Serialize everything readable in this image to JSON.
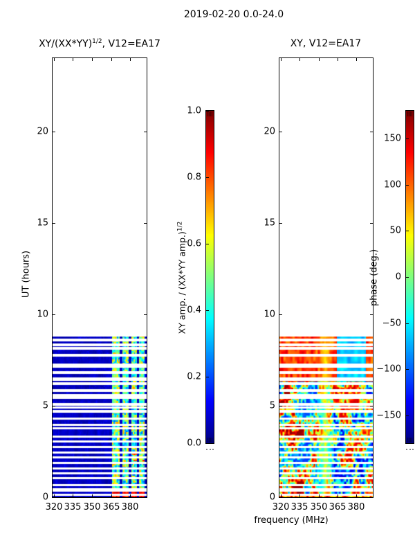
{
  "figure": {
    "title": "2019-02-20 0.0-24.0",
    "background": "#ffffff",
    "text_color": "#000000"
  },
  "panels": [
    {
      "id": "left",
      "title_pre": "XY/(XX*YY)",
      "title_sup": "1/2",
      "title_post": ", V12=EA17",
      "ylabel": "UT (hours)",
      "x_tick_labels": [
        "320",
        "335",
        "350",
        "365",
        "380"
      ],
      "x_tick_values": [
        320,
        335,
        350,
        365,
        380
      ],
      "y_tick_labels": [
        "0",
        "5",
        "10",
        "15",
        "20"
      ],
      "y_tick_values": [
        0,
        5,
        10,
        15,
        20
      ],
      "x_range": [
        319,
        393
      ],
      "y_range": [
        0,
        24
      ]
    },
    {
      "id": "right",
      "title": "XY, V12=EA17",
      "xlabel": "frequency (MHz)",
      "x_tick_labels": [
        "320",
        "335",
        "350",
        "365",
        "380"
      ],
      "x_tick_values": [
        320,
        335,
        350,
        365,
        380
      ],
      "y_tick_labels": [
        "0",
        "5",
        "10",
        "15",
        "20"
      ],
      "y_tick_values": [
        0,
        5,
        10,
        15,
        20
      ],
      "x_range": [
        319,
        393
      ],
      "y_range": [
        0,
        24
      ]
    }
  ],
  "colorbars": [
    {
      "id": "amp",
      "label_pre": "XY amp. / (XX*YY amp.)",
      "label_sup": "1/2",
      "tick_labels": [
        "1.0",
        "0.8",
        "0.6",
        "0.4",
        "0.2",
        "0.0"
      ],
      "tick_values": [
        1.0,
        0.8,
        0.6,
        0.4,
        0.2,
        0.0
      ],
      "range": [
        0,
        1
      ],
      "colormap": "jet"
    },
    {
      "id": "phase",
      "label": "phase (deg.)",
      "tick_labels": [
        "150",
        "100",
        "50",
        "0",
        "−50",
        "−100",
        "−150"
      ],
      "tick_values": [
        150,
        100,
        50,
        0,
        -50,
        -100,
        -150
      ],
      "range": [
        -180,
        180
      ],
      "colormap": "jet"
    }
  ],
  "chart_data": [
    {
      "type": "heatmap",
      "title": "XY/(XX*YY)^(1/2), V12=EA17",
      "xlabel": "frequency (MHz)",
      "ylabel": "UT (hours)",
      "x_range_mhz": [
        319,
        393
      ],
      "y_range_hours": [
        0,
        24
      ],
      "colormap": "jet",
      "value_range": [
        0,
        1
      ],
      "data_extent_ut": [
        0,
        8.78
      ],
      "background_value": 0.05,
      "bright_column_bands_mhz": [
        [
          365.5,
          371.5
        ],
        [
          373.5,
          378.5
        ],
        [
          380.5,
          385.0
        ],
        [
          386.5,
          391.0
        ]
      ],
      "bright_band_value_range": [
        0.2,
        0.75
      ],
      "bottom_rows": {
        "ut": [
          0,
          0.35
        ],
        "value_range": [
          0.75,
          0.95
        ]
      },
      "flagged_gaps_ut": [
        [
          8.62,
          0.13
        ],
        [
          8.35,
          0.1
        ],
        [
          8.16,
          0.1
        ],
        [
          7.79,
          0.1
        ],
        [
          7.22,
          0.19
        ],
        [
          6.84,
          0.11
        ],
        [
          6.46,
          0.15
        ],
        [
          6.24,
          0.11
        ],
        [
          5.86,
          0.1
        ],
        [
          5.52,
          0.23
        ],
        [
          5.1,
          0.1
        ],
        [
          4.91,
          0.09
        ],
        [
          4.72,
          0.09
        ],
        [
          4.31,
          0.1
        ],
        [
          3.97,
          0.09
        ],
        [
          3.78,
          0.09
        ],
        [
          3.33,
          0.1
        ],
        [
          3.06,
          0.09
        ],
        [
          2.76,
          0.1
        ],
        [
          2.46,
          0.09
        ],
        [
          2.19,
          0.09
        ],
        [
          1.89,
          0.1
        ],
        [
          1.59,
          0.09
        ],
        [
          1.32,
          0.09
        ],
        [
          1.06,
          0.09
        ],
        [
          0.68,
          0.1
        ],
        [
          0.42,
          0.15
        ],
        [
          0.15,
          0.09
        ]
      ]
    },
    {
      "type": "heatmap",
      "title": "XY, V12=EA17",
      "xlabel": "frequency (MHz)",
      "ylabel": "UT (hours)",
      "x_range_mhz": [
        319,
        393
      ],
      "y_range_hours": [
        0,
        24
      ],
      "colormap": "jet",
      "value_range_deg": [
        -180,
        180
      ],
      "data_extent_ut": [
        0,
        8.78
      ],
      "yellow_band": {
        "mhz": [
          348.5,
          361.5
        ],
        "phase_deg": [
          30,
          60
        ]
      },
      "upper_block": {
        "ut": [
          6.35,
          8.55
        ],
        "blue_mhz": [
          364,
          387.5
        ],
        "blue_phase_deg": [
          -95,
          -45
        ],
        "other_phase_deg": [
          70,
          150
        ]
      },
      "chaotic_region": {
        "ut": [
          0,
          6.35
        ],
        "phase_deg": [
          -180,
          180
        ]
      },
      "bottom_row": {
        "ut": [
          0,
          0.18
        ],
        "phase_deg": [
          20,
          160
        ]
      },
      "flagged_gaps_ut": [
        [
          8.62,
          0.13
        ],
        [
          8.35,
          0.1
        ],
        [
          8.16,
          0.1
        ],
        [
          7.79,
          0.1
        ],
        [
          7.22,
          0.19
        ],
        [
          6.84,
          0.11
        ],
        [
          6.46,
          0.15
        ],
        [
          6.24,
          0.11
        ],
        [
          5.86,
          0.1
        ],
        [
          5.52,
          0.23
        ],
        [
          5.1,
          0.1
        ],
        [
          4.91,
          0.09
        ],
        [
          4.72,
          0.09
        ],
        [
          4.31,
          0.1
        ],
        [
          3.97,
          0.09
        ],
        [
          3.78,
          0.09
        ],
        [
          3.33,
          0.1
        ],
        [
          3.06,
          0.09
        ],
        [
          2.76,
          0.1
        ],
        [
          2.46,
          0.09
        ],
        [
          2.19,
          0.09
        ],
        [
          1.89,
          0.1
        ],
        [
          1.59,
          0.09
        ],
        [
          1.32,
          0.09
        ],
        [
          1.06,
          0.09
        ],
        [
          0.68,
          0.1
        ],
        [
          0.42,
          0.15
        ],
        [
          0.15,
          0.09
        ]
      ]
    }
  ]
}
